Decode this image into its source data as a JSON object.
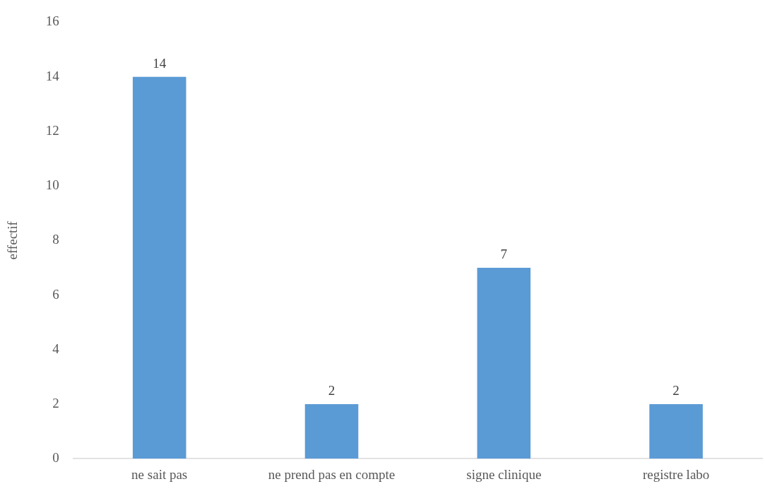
{
  "chart_data": {
    "type": "bar",
    "ylabel": "effectif",
    "categories": [
      "ne sait pas",
      "ne prend pas en compte",
      "signe clinique",
      "registre labo"
    ],
    "values": [
      14,
      2,
      7,
      2
    ],
    "color": "#5b9bd5",
    "ylim": [
      0,
      16
    ],
    "yticks": [
      0,
      2,
      4,
      6,
      8,
      10,
      12,
      14,
      16
    ],
    "data_labels": true
  }
}
